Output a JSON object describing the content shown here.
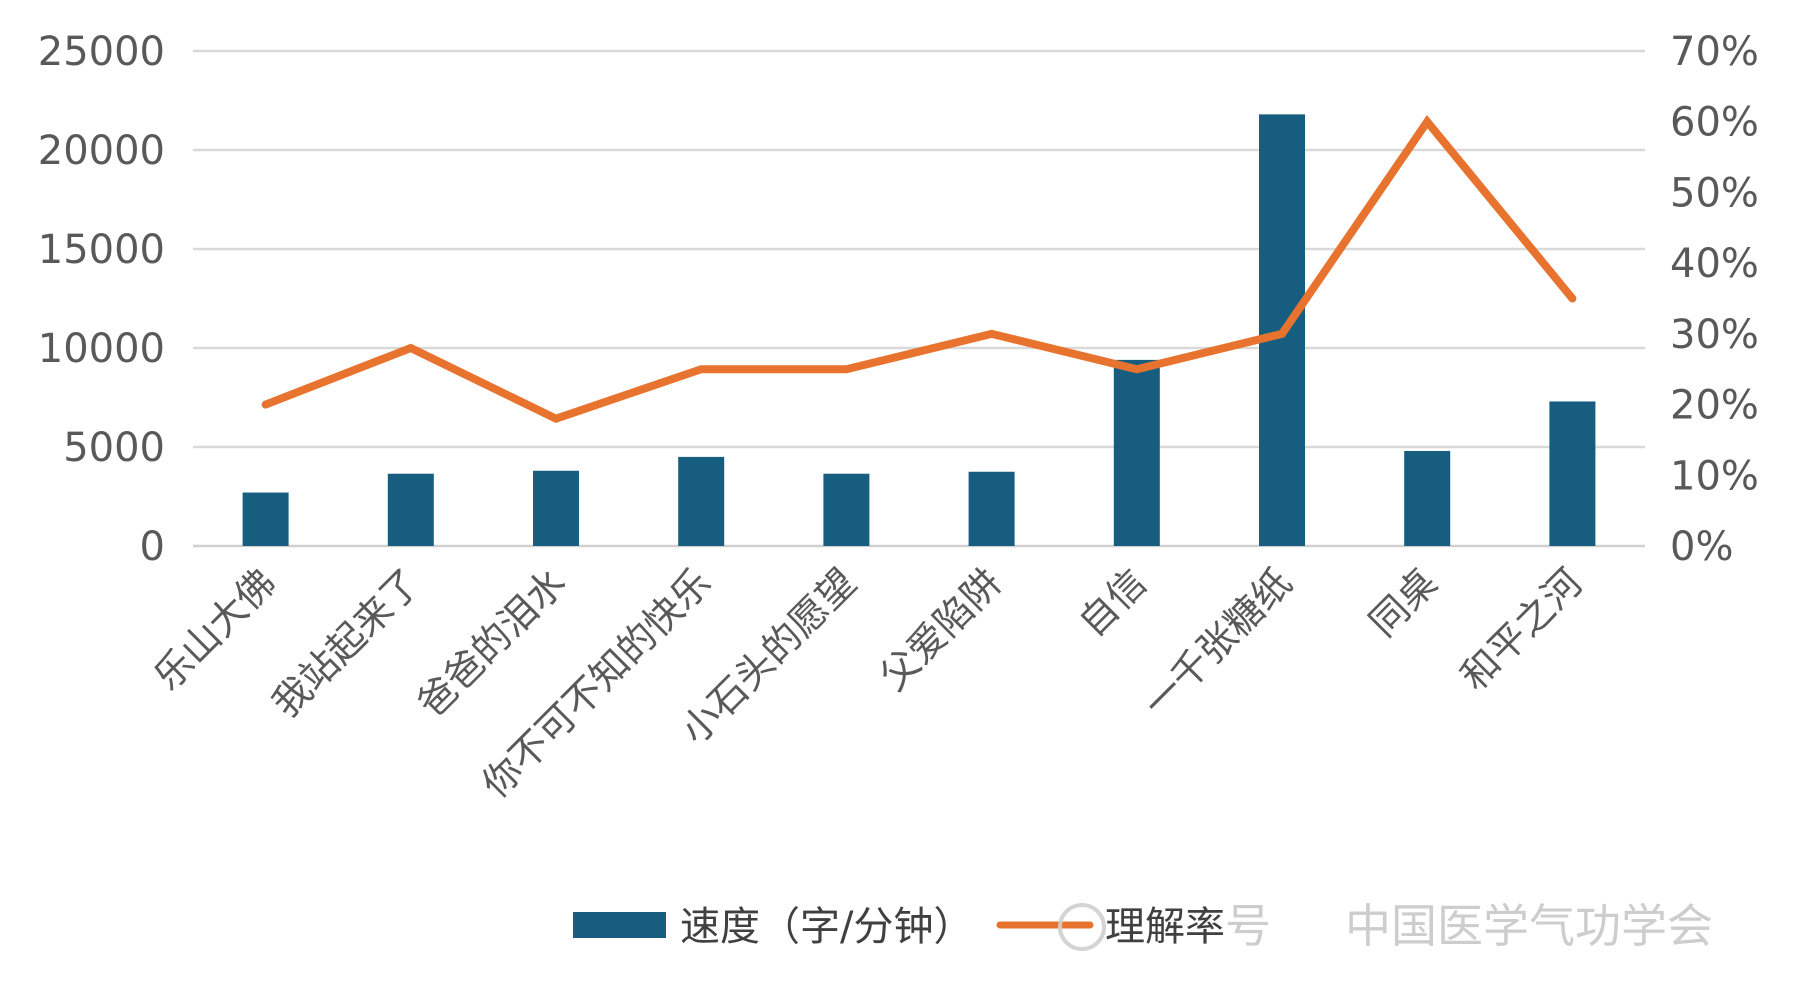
{
  "chart_data": {
    "type": "bar",
    "categories": [
      "乐山大佛",
      "我站起来了",
      "爸爸的泪水",
      "你不可不知的快乐",
      "小石头的愿望",
      "父爱陷阱",
      "自信",
      "一千张糖纸",
      "同桌",
      "和平之河"
    ],
    "series": [
      {
        "name": "速度（字/分钟）",
        "type": "bar",
        "axis": "left",
        "color": "#175d80",
        "values": [
          2700,
          3650,
          3800,
          4500,
          3650,
          3750,
          9400,
          21800,
          4800,
          7300
        ]
      },
      {
        "name": "理解率",
        "type": "line",
        "axis": "right",
        "color": "#e8732f",
        "values": [
          0.2,
          0.28,
          0.18,
          0.25,
          0.25,
          0.3,
          0.25,
          0.3,
          0.6,
          0.35
        ]
      }
    ],
    "y_left": {
      "min": 0,
      "max": 25000,
      "ticks": [
        "0",
        "5000",
        "10000",
        "15000",
        "20000",
        "25000"
      ]
    },
    "y_right": {
      "min": 0,
      "max": 0.7,
      "ticks": [
        "0%",
        "10%",
        "20%",
        "30%",
        "40%",
        "50%",
        "60%",
        "70%"
      ]
    },
    "grid": true,
    "legend": "bottom"
  },
  "watermark": {
    "left": "号",
    "right": "中国医学气功学会"
  }
}
